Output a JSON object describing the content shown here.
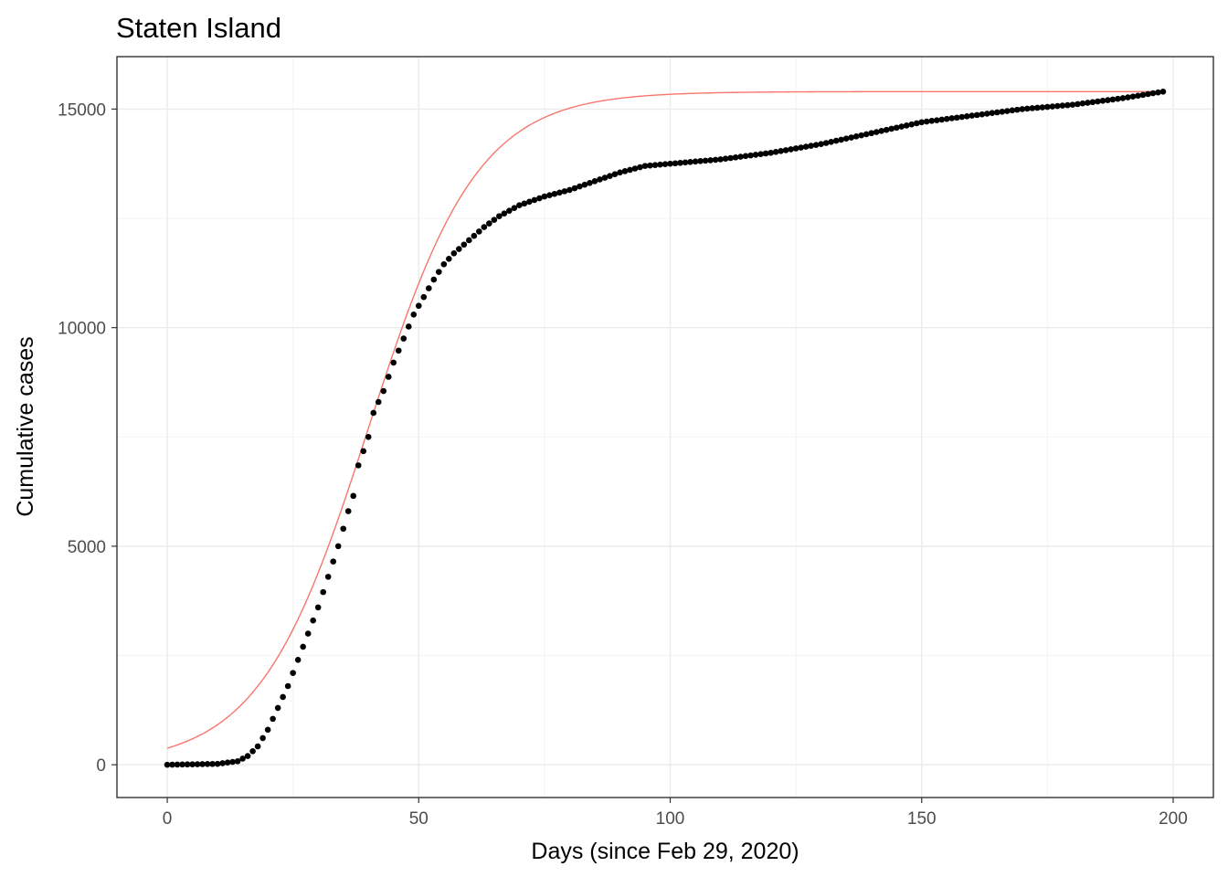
{
  "chart_data": {
    "type": "scatter",
    "title": "Staten Island",
    "xlabel": "Days (since Feb 29, 2020)",
    "ylabel": "Cumulative cases",
    "xlim": [
      -10,
      208
    ],
    "ylim": [
      -750,
      16200
    ],
    "x_ticks": [
      0,
      50,
      100,
      150,
      200
    ],
    "y_ticks": [
      0,
      5000,
      10000,
      15000
    ],
    "x_tick_labels": [
      "0",
      "50",
      "100",
      "150",
      "200"
    ],
    "y_tick_labels": [
      "0",
      "5000",
      "10000",
      "15000"
    ],
    "grid": true,
    "legend": "none",
    "colors": {
      "points": "#000000",
      "fit_line": "#F8766D"
    },
    "series": [
      {
        "kind": "points",
        "x_start": 0,
        "x_end": 198,
        "anchors": [
          [
            0,
            0
          ],
          [
            10,
            20
          ],
          [
            14,
            80
          ],
          [
            16,
            200
          ],
          [
            18,
            420
          ],
          [
            20,
            800
          ],
          [
            22,
            1300
          ],
          [
            24,
            1800
          ],
          [
            26,
            2400
          ],
          [
            28,
            3000
          ],
          [
            30,
            3600
          ],
          [
            32,
            4300
          ],
          [
            34,
            5000
          ],
          [
            36,
            5800
          ],
          [
            37,
            6150
          ],
          [
            38,
            6850
          ],
          [
            40,
            7500
          ],
          [
            41,
            8050
          ],
          [
            43,
            8550
          ],
          [
            45,
            9200
          ],
          [
            47,
            9750
          ],
          [
            49,
            10300
          ],
          [
            51,
            10700
          ],
          [
            53,
            11100
          ],
          [
            55,
            11450
          ],
          [
            57,
            11700
          ],
          [
            60,
            12000
          ],
          [
            63,
            12300
          ],
          [
            66,
            12550
          ],
          [
            70,
            12800
          ],
          [
            75,
            13000
          ],
          [
            80,
            13150
          ],
          [
            85,
            13350
          ],
          [
            90,
            13550
          ],
          [
            95,
            13700
          ],
          [
            100,
            13750
          ],
          [
            110,
            13850
          ],
          [
            120,
            14000
          ],
          [
            130,
            14200
          ],
          [
            140,
            14450
          ],
          [
            150,
            14700
          ],
          [
            160,
            14850
          ],
          [
            170,
            15000
          ],
          [
            180,
            15100
          ],
          [
            190,
            15250
          ],
          [
            198,
            15400
          ]
        ]
      },
      {
        "kind": "line",
        "model": "logistic",
        "K": 15400,
        "r": 0.092,
        "t0": 40
      }
    ]
  }
}
